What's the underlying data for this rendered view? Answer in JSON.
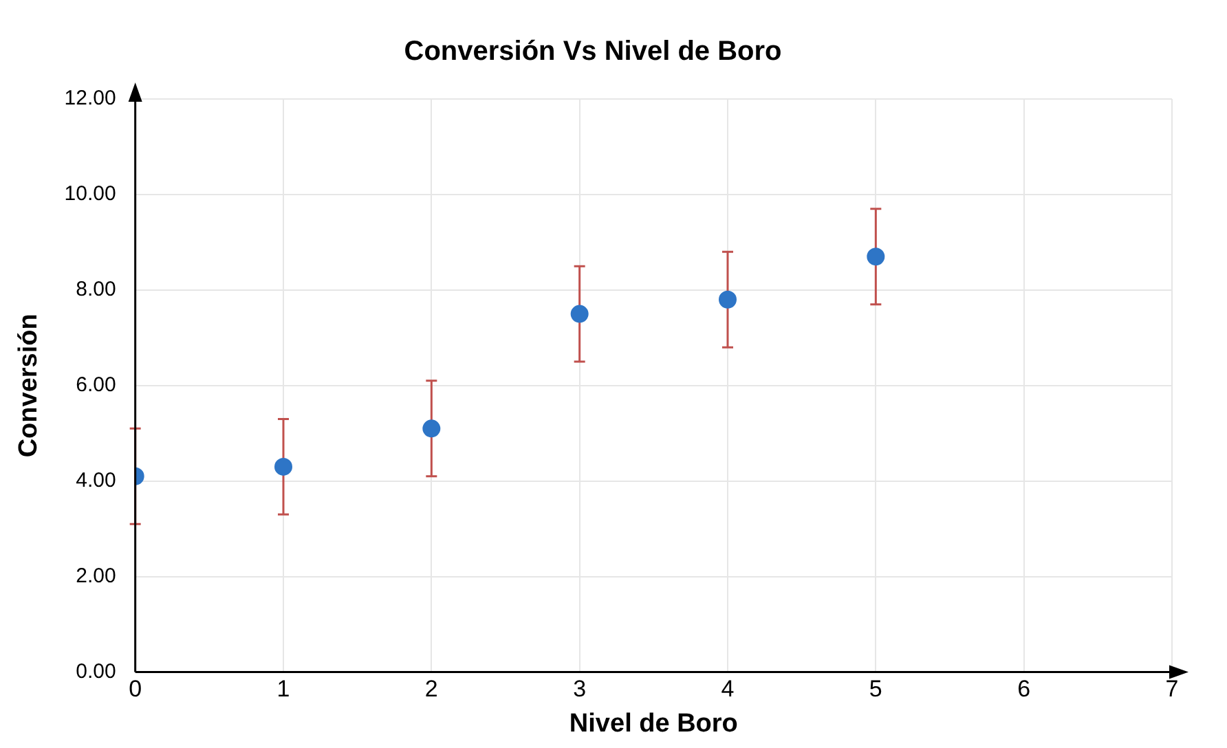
{
  "chart_data": {
    "type": "scatter",
    "title": "Conversión Vs Nivel de Boro",
    "xlabel": "Nivel de Boro",
    "ylabel": "Conversión",
    "x": [
      0,
      1,
      2,
      3,
      4,
      5
    ],
    "series": [
      {
        "color": "#2e75c6",
        "values": [
          4.1,
          4.3,
          5.1,
          7.5,
          7.8,
          8.7
        ],
        "errors": [
          1,
          1,
          1,
          1,
          1,
          1
        ]
      }
    ],
    "xlim": [
      0,
      7
    ],
    "xticks": [
      0,
      1,
      2,
      3,
      4,
      5,
      6,
      7
    ],
    "ylim": [
      0,
      12
    ],
    "yticks": [
      {
        "value": 0,
        "label": "0.00"
      },
      {
        "value": 2,
        "label": "2.00"
      },
      {
        "value": 4,
        "label": "4.00"
      },
      {
        "value": 6,
        "label": "6.00"
      },
      {
        "value": 8,
        "label": "8.00"
      },
      {
        "value": 10,
        "label": "10.00"
      },
      {
        "value": 12,
        "label": "12.00"
      }
    ],
    "grid": true,
    "legend": false,
    "marker": "circle"
  }
}
